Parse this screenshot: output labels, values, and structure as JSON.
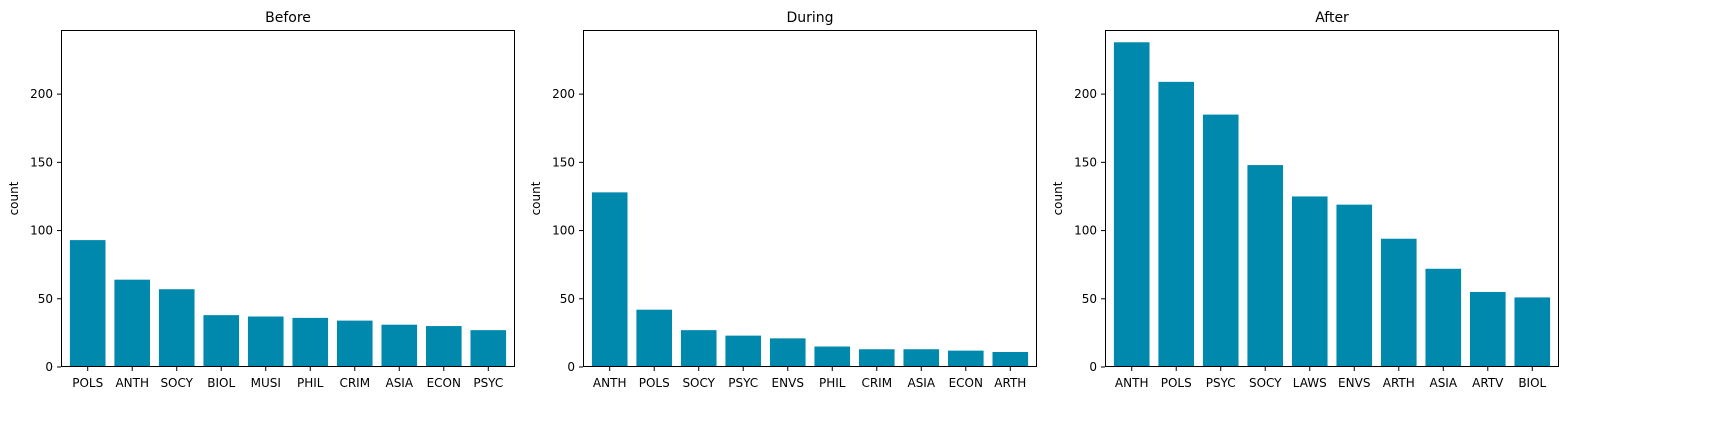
{
  "chart_data": [
    {
      "type": "bar",
      "title": "Before",
      "ylabel": "count",
      "xlabel": "",
      "categories": [
        "POLS",
        "ANTH",
        "SOCY",
        "BIOL",
        "MUSI",
        "PHIL",
        "CRIM",
        "ASIA",
        "ECON",
        "PSYC"
      ],
      "values": [
        93,
        64,
        57,
        38,
        37,
        36,
        34,
        31,
        30,
        27
      ],
      "ylim": [
        0,
        247
      ],
      "yticks": [
        0,
        50,
        100,
        150,
        200
      ],
      "grid": false,
      "color": "#0088ad"
    },
    {
      "type": "bar",
      "title": "During",
      "ylabel": "count",
      "xlabel": "",
      "categories": [
        "ANTH",
        "POLS",
        "SOCY",
        "PSYC",
        "ENVS",
        "PHIL",
        "CRIM",
        "ASIA",
        "ECON",
        "ARTH"
      ],
      "values": [
        128,
        42,
        27,
        23,
        21,
        15,
        13,
        13,
        12,
        11
      ],
      "ylim": [
        0,
        247
      ],
      "yticks": [
        0,
        50,
        100,
        150,
        200
      ],
      "grid": false,
      "color": "#0088ad"
    },
    {
      "type": "bar",
      "title": "After",
      "ylabel": "count",
      "xlabel": "",
      "categories": [
        "ANTH",
        "POLS",
        "PSYC",
        "SOCY",
        "LAWS",
        "ENVS",
        "ARTH",
        "ASIA",
        "ARTV",
        "BIOL"
      ],
      "values": [
        238,
        209,
        185,
        148,
        125,
        119,
        94,
        72,
        55,
        51
      ],
      "ylim": [
        0,
        247
      ],
      "yticks": [
        0,
        50,
        100,
        150,
        200
      ],
      "grid": false,
      "color": "#0088ad"
    }
  ]
}
